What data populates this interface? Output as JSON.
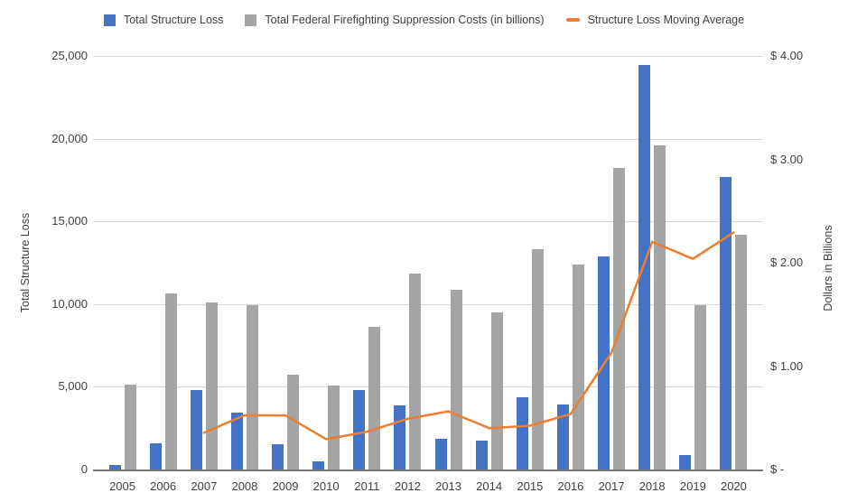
{
  "chart_data": {
    "type": "bar",
    "title": "",
    "categories": [
      "2005",
      "2006",
      "2007",
      "2008",
      "2009",
      "2010",
      "2011",
      "2012",
      "2013",
      "2014",
      "2015",
      "2016",
      "2017",
      "2018",
      "2019",
      "2020"
    ],
    "series": [
      {
        "name": "Total Structure Loss",
        "type": "bar",
        "axis": "left",
        "color": "#4472C4",
        "values": [
          250,
          1600,
          4800,
          3450,
          1550,
          500,
          4800,
          3900,
          1850,
          1750,
          4350,
          3950,
          12900,
          24450,
          850,
          17700
        ]
      },
      {
        "name": "Total Federal Firefighting Suppression Costs (in billions)",
        "type": "bar",
        "axis": "right",
        "color": "#A5A5A5",
        "values": [
          0.82,
          1.7,
          1.62,
          1.59,
          0.92,
          0.81,
          1.38,
          1.9,
          1.74,
          1.52,
          2.13,
          1.98,
          2.92,
          3.14,
          1.59,
          2.27
        ]
      },
      {
        "name": "Structure Loss Moving Average",
        "type": "line",
        "axis": "left",
        "color": "#ED7D31",
        "values": [
          null,
          null,
          2217,
          3283,
          3267,
          1833,
          2283,
          3067,
          3517,
          2500,
          2650,
          3350,
          7067,
          13767,
          12733,
          14333
        ]
      }
    ],
    "left_axis": {
      "title": "Total Structure Loss",
      "ticks": [
        "0",
        "5,000",
        "10,000",
        "15,000",
        "20,000",
        "25,000"
      ],
      "lim": [
        0,
        25000
      ]
    },
    "right_axis": {
      "title": "Dollars in Billions",
      "ticks": [
        "$ -",
        "$ 1.00",
        "$ 2.00",
        "$ 3.00",
        "$ 4.00"
      ],
      "lim": [
        0,
        4
      ]
    },
    "grid": true,
    "legend_position": "top",
    "colors": {
      "grid": "#d9d9d9",
      "axis_line": "#767676",
      "label_text": "#404040",
      "background": "#ffffff"
    }
  }
}
